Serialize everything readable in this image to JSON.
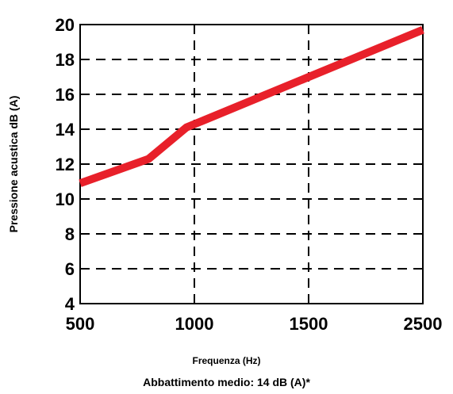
{
  "chart_data": {
    "type": "line",
    "x": [
      "500",
      "1000",
      "1500",
      "2500"
    ],
    "series": [
      {
        "values": [
          [
            0,
            10.9
          ],
          [
            0.6,
            12.3
          ],
          [
            0.93,
            14.1
          ],
          [
            3,
            19.7
          ]
        ],
        "color": "#e8202a"
      }
    ],
    "xlabel": "Frequenza (Hz)",
    "ylabel": "Pressione acustica dB (A)",
    "yticks": [
      4,
      6,
      8,
      10,
      12,
      14,
      16,
      18,
      20
    ],
    "ylim": [
      4,
      20
    ],
    "grid": "dashed",
    "caption": "Abbattimento medio: 14 dB (A)*"
  }
}
